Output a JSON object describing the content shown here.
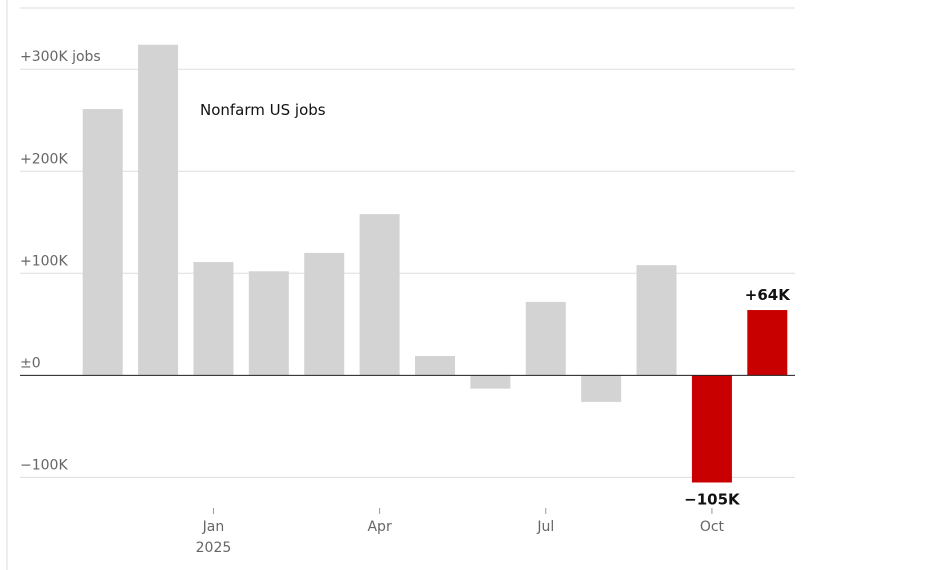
{
  "chart_data": {
    "type": "bar",
    "title": "Nonfarm US jobs",
    "categories": [
      null,
      null,
      "Jan",
      null,
      null,
      "Apr",
      null,
      null,
      "Jul",
      null,
      null,
      "Oct",
      null
    ],
    "x_year_label": "2025",
    "values": [
      261,
      324,
      111,
      102,
      120,
      158,
      19,
      -13,
      72,
      -26,
      108,
      -105,
      64
    ],
    "value_labels": [
      null,
      null,
      null,
      null,
      null,
      null,
      null,
      null,
      null,
      null,
      null,
      "−105K",
      "+64K"
    ],
    "colors": [
      "#d3d3d3",
      "#d3d3d3",
      "#d3d3d3",
      "#d3d3d3",
      "#d3d3d3",
      "#d3d3d3",
      "#d3d3d3",
      "#d3d3d3",
      "#d3d3d3",
      "#d3d3d3",
      "#d3d3d3",
      "#c80000",
      "#c80000"
    ],
    "ylim": [
      -130,
      360
    ],
    "yticks": [
      {
        "value": -100,
        "label": "−100K"
      },
      {
        "value": 0,
        "label": "±0"
      },
      {
        "value": 100,
        "label": "+100K"
      },
      {
        "value": 200,
        "label": "+200K"
      },
      {
        "value": 300,
        "label": "+300K jobs"
      }
    ],
    "grid": true
  }
}
